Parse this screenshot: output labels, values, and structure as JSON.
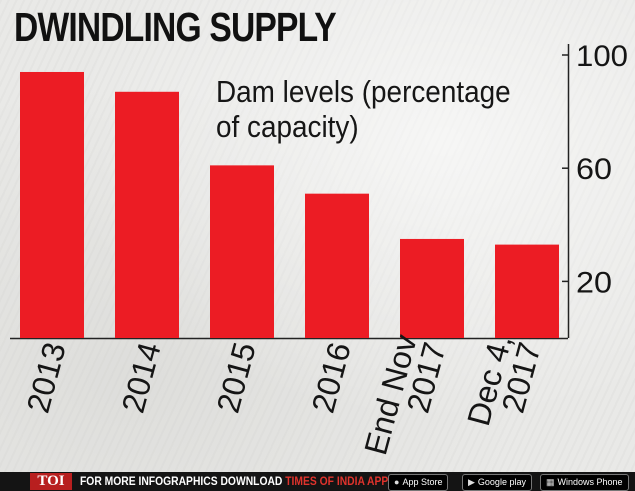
{
  "title": "DWINDLING SUPPLY",
  "chart_data": {
    "type": "bar",
    "title": "DWINDLING SUPPLY",
    "subtitle": "Dam levels (percentage of capacity)",
    "categories": [
      "2013",
      "2014",
      "2015",
      "2016",
      "End Nov 2017",
      "Dec 4, 2017"
    ],
    "values": [
      94,
      87,
      61,
      51,
      35,
      33
    ],
    "yticks": [
      20,
      60,
      100
    ],
    "ylim": [
      0,
      100
    ],
    "bar_color": "#ec1c24",
    "axis_side": "right",
    "grid": false,
    "legend": "none"
  },
  "footer": {
    "brand": "TOI",
    "promo_white": "FOR MORE  INFOGRAPHICS DOWNLOAD ",
    "promo_red": "TIMES OF INDIA APP",
    "badges": [
      {
        "icon": "apple-icon",
        "label": "App Store"
      },
      {
        "icon": "play-icon",
        "label": "Google play"
      },
      {
        "icon": "windows-icon",
        "label": "Windows Phone"
      }
    ]
  }
}
